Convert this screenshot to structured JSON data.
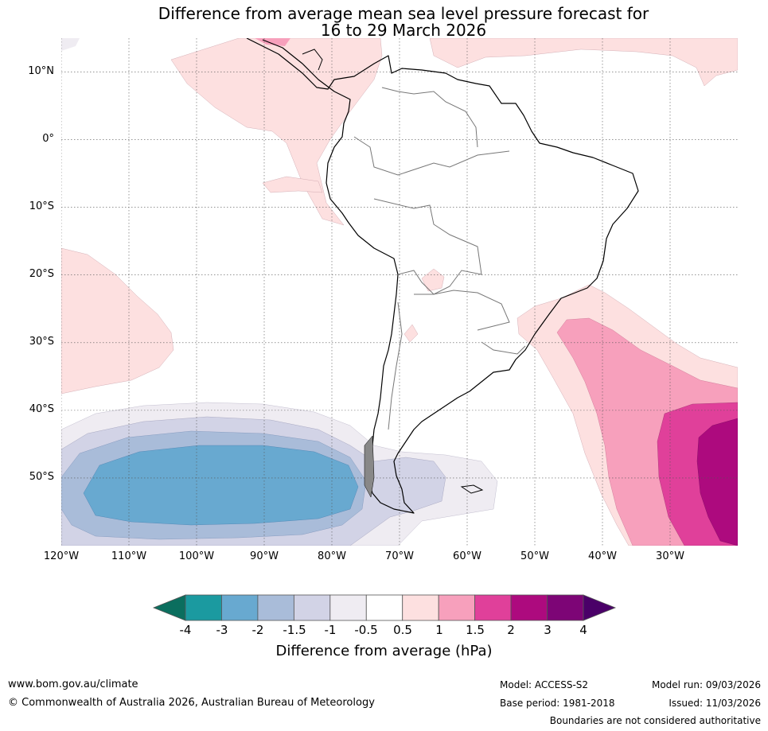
{
  "title_line1": "Difference from average mean sea level pressure forecast for",
  "title_line2": "16 to 29 March 2026",
  "map": {
    "lat_labels": [
      "10°N",
      "0°",
      "10°S",
      "20°S",
      "30°S",
      "40°S",
      "50°S"
    ],
    "lon_labels": [
      "120°W",
      "110°W",
      "100°W",
      "90°W",
      "80°W",
      "70°W",
      "60°W",
      "50°W",
      "40°W",
      "30°W"
    ],
    "extent": {
      "lon_min": -120,
      "lon_max": -20,
      "lat_min": -60,
      "lat_max": 15
    }
  },
  "colorbar": {
    "title": "Difference from average (hPa)",
    "ticks": [
      "-4",
      "-3",
      "-2",
      "-1.5",
      "-1",
      "-0.5",
      "0.5",
      "1",
      "1.5",
      "2",
      "3",
      "4"
    ],
    "colors": [
      "#1b9aa0",
      "#68a9d0",
      "#a9bcd9",
      "#d2d3e6",
      "#efecf2",
      "#ffffff",
      "#fde0e0",
      "#f7a0bc",
      "#e0409a",
      "#ad0a7e",
      "#7d0576"
    ],
    "under_color": "#0b6e5e",
    "over_color": "#4a0068"
  },
  "footer": {
    "website": "www.bom.gov.au/climate",
    "copyright": "© Commonwealth of Australia 2026, Australian Bureau of Meteorology",
    "model": "Model: ACCESS-S2",
    "base_period": "Base period: 1981-2018",
    "model_run": "Model run: 09/03/2026",
    "issued": "Issued: 11/03/2026",
    "disclaimer": "Boundaries are not considered authoritative"
  }
}
